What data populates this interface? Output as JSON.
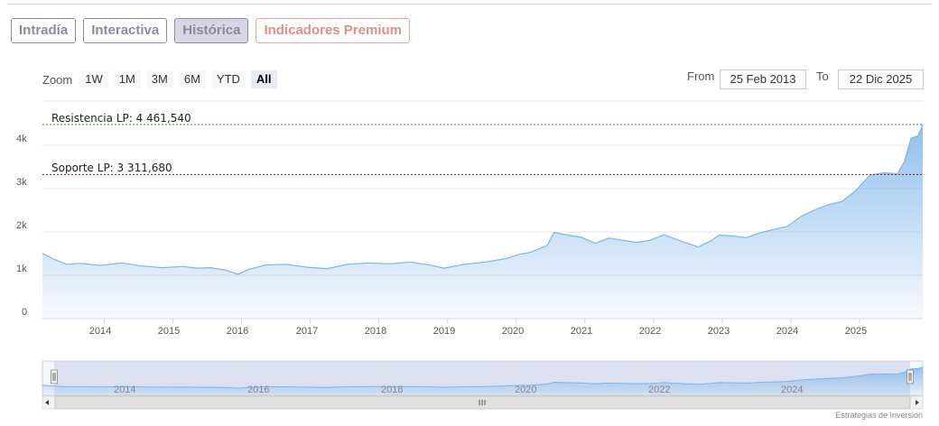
{
  "tabs": [
    {
      "label": "Intradía",
      "active": false
    },
    {
      "label": "Interactiva",
      "active": false
    },
    {
      "label": "Histórica",
      "active": true
    },
    {
      "label": "Indicadores Premium",
      "active": false
    }
  ],
  "zoom": {
    "label": "Zoom",
    "buttons": [
      "1W",
      "1M",
      "3M",
      "6M",
      "YTD",
      "All"
    ],
    "selected": "All"
  },
  "range": {
    "from_label": "From",
    "from_value": "25 Feb 2013",
    "to_label": "To",
    "to_value": "22 Dic 2025"
  },
  "annotations": {
    "resistance_label": "Resistencia LP: 4 461,540",
    "resistance_value": 4461.54,
    "support_label": "Soporte LP: 3 311,680",
    "support_value": 3311.68
  },
  "y_ticks": [
    "0",
    "1k",
    "2k",
    "3k",
    "4k"
  ],
  "x_ticks": [
    "2014",
    "2015",
    "2016",
    "2017",
    "2018",
    "2019",
    "2020",
    "2021",
    "2022",
    "2023",
    "2024",
    "2025"
  ],
  "navigator_ticks": [
    "2014",
    "2016",
    "2018",
    "2020",
    "2022",
    "2024"
  ],
  "credit": "Estrategias de Inversión",
  "colors": {
    "series_line": "#7cb5ec",
    "resistance_line": "#2e8b2e",
    "support_line": "#8b1a1a"
  },
  "chart_data": {
    "type": "area",
    "xlim": [
      2013.15,
      2025.97
    ],
    "ylim": [
      0,
      4800
    ],
    "grid": true,
    "x": [
      2013.15,
      2013.3,
      2013.5,
      2013.7,
      2014.0,
      2014.3,
      2014.6,
      2014.9,
      2015.2,
      2015.4,
      2015.6,
      2015.8,
      2016.0,
      2016.15,
      2016.4,
      2016.7,
      2017.0,
      2017.3,
      2017.6,
      2017.9,
      2018.2,
      2018.5,
      2018.8,
      2019.0,
      2019.3,
      2019.6,
      2019.9,
      2020.1,
      2020.25,
      2020.5,
      2020.6,
      2020.8,
      2021.0,
      2021.2,
      2021.4,
      2021.6,
      2021.8,
      2022.0,
      2022.2,
      2022.5,
      2022.7,
      2022.9,
      2023.0,
      2023.2,
      2023.4,
      2023.6,
      2023.8,
      2024.0,
      2024.2,
      2024.4,
      2024.6,
      2024.8,
      2025.0,
      2025.2,
      2025.4,
      2025.6,
      2025.7,
      2025.8,
      2025.9,
      2025.97
    ],
    "values": [
      1500,
      1380,
      1250,
      1270,
      1220,
      1280,
      1210,
      1170,
      1200,
      1160,
      1170,
      1120,
      1020,
      1130,
      1230,
      1250,
      1180,
      1150,
      1250,
      1280,
      1260,
      1300,
      1230,
      1160,
      1250,
      1300,
      1380,
      1480,
      1520,
      1680,
      1980,
      1920,
      1870,
      1730,
      1850,
      1800,
      1750,
      1800,
      1930,
      1750,
      1650,
      1800,
      1920,
      1900,
      1860,
      1970,
      2050,
      2120,
      2350,
      2500,
      2620,
      2700,
      2950,
      3300,
      3350,
      3330,
      3600,
      4150,
      4200,
      4461.54
    ],
    "hlines": [
      {
        "label": "Resistencia LP: 4 461,540",
        "value": 4461.54
      },
      {
        "label": "Soporte LP: 3 311,680",
        "value": 3311.68
      }
    ]
  }
}
